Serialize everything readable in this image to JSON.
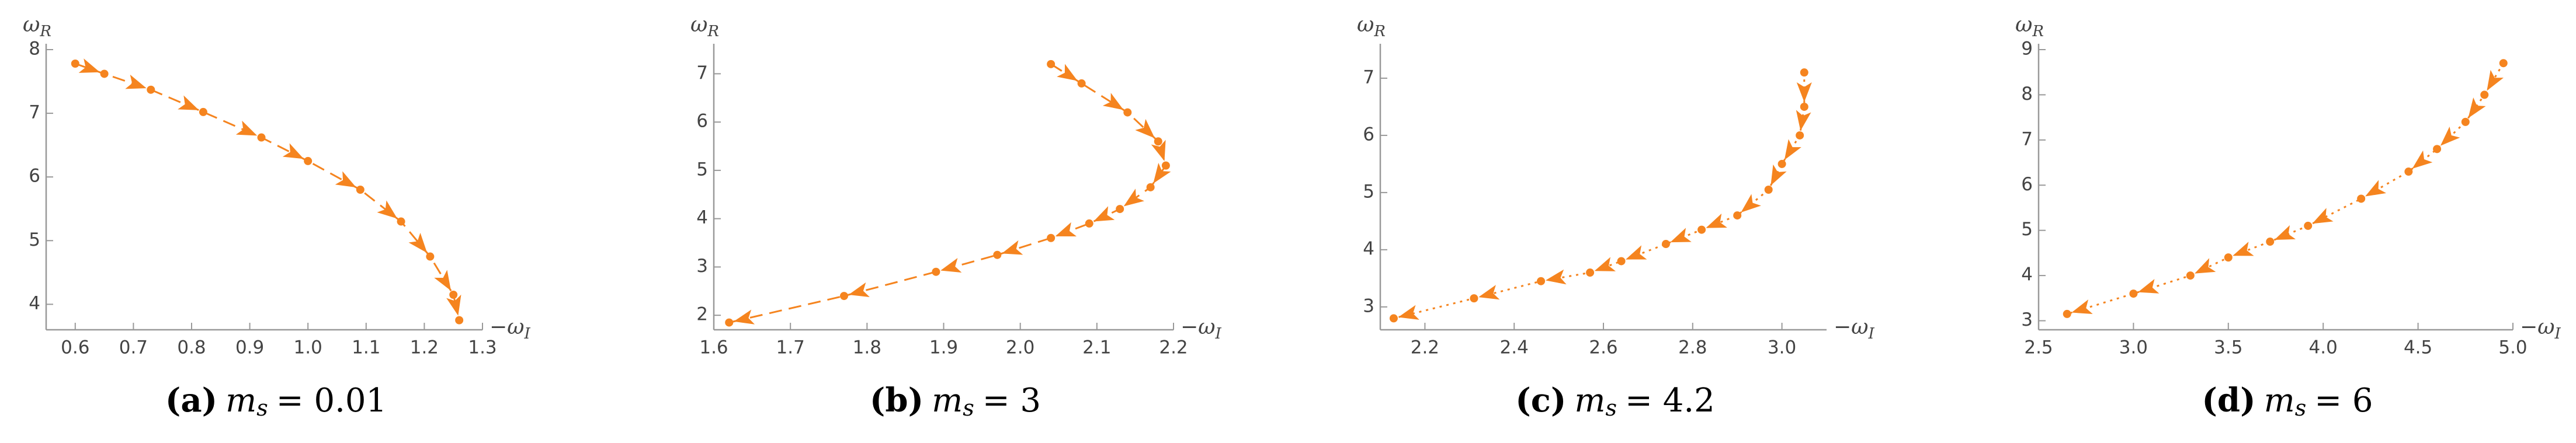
{
  "chart_data": [
    {
      "type": "line",
      "color": "#f5841f",
      "line_style": "dashed",
      "x": [
        0.6,
        0.65,
        0.73,
        0.82,
        0.92,
        1.0,
        1.09,
        1.16,
        1.21,
        1.25,
        1.26
      ],
      "values": [
        7.78,
        7.62,
        7.37,
        7.02,
        6.62,
        6.25,
        5.8,
        5.3,
        4.75,
        4.15,
        3.75
      ],
      "xlim": [
        0.55,
        1.3
      ],
      "ylim": [
        3.6,
        8
      ],
      "xticks": [
        0.6,
        0.7,
        0.8,
        0.9,
        {
          "value": 1,
          "label": "1.0"
        },
        1.1,
        1.2,
        1.3
      ],
      "yticks": [
        4,
        5,
        6,
        7,
        8
      ],
      "x_label": "−ω",
      "x_label_sub": "I",
      "y_label": "ω",
      "y_label_sub": "R",
      "caption_label": "(a)",
      "caption_symbol": "m",
      "caption_subscript": "s",
      "caption_value": "= 0.01"
    },
    {
      "type": "line",
      "color": "#f5841f",
      "line_style": "dashed",
      "x": [
        2.04,
        2.08,
        2.14,
        2.18,
        2.19,
        2.17,
        2.13,
        2.09,
        2.04,
        1.97,
        1.89,
        1.77,
        1.62
      ],
      "values": [
        7.2,
        6.8,
        6.2,
        5.6,
        5.1,
        4.65,
        4.2,
        3.9,
        3.6,
        3.25,
        2.9,
        2.4,
        1.85
      ],
      "xlim": [
        1.6,
        2.2
      ],
      "ylim": [
        1.7,
        7.5
      ],
      "xticks": [
        1.6,
        1.7,
        1.8,
        1.9,
        {
          "value": 2,
          "label": "2.0"
        },
        2.1,
        2.2
      ],
      "yticks": [
        2,
        3,
        4,
        5,
        6,
        7
      ],
      "x_label": "−ω",
      "x_label_sub": "I",
      "y_label": "ω",
      "y_label_sub": "R",
      "caption_label": "(b)",
      "caption_symbol": "m",
      "caption_subscript": "s",
      "caption_value": "= 3"
    },
    {
      "type": "line",
      "color": "#f5841f",
      "line_style": "dotted",
      "x": [
        3.05,
        3.05,
        3.04,
        3.0,
        2.97,
        2.9,
        2.82,
        2.74,
        2.64,
        2.57,
        2.46,
        2.31,
        2.13
      ],
      "values": [
        7.1,
        6.5,
        6.0,
        5.5,
        5.05,
        4.6,
        4.35,
        4.1,
        3.8,
        3.6,
        3.45,
        3.15,
        2.8
      ],
      "xlim": [
        2.1,
        3.1
      ],
      "ylim": [
        2.6,
        7.5
      ],
      "xticks": [
        2.2,
        2.4,
        2.6,
        2.8,
        {
          "value": 3,
          "label": "3.0"
        }
      ],
      "yticks": [
        3,
        4,
        5,
        6,
        7
      ],
      "x_label": "−ω",
      "x_label_sub": "I",
      "y_label": "ω",
      "y_label_sub": "R",
      "caption_label": "(c)",
      "caption_symbol": "m",
      "caption_subscript": "s",
      "caption_value": "= 4.2"
    },
    {
      "type": "line",
      "color": "#f5841f",
      "line_style": "dotted",
      "x": [
        4.95,
        4.85,
        4.75,
        4.6,
        4.45,
        4.2,
        3.92,
        3.72,
        3.5,
        3.3,
        3.0,
        2.65
      ],
      "values": [
        8.7,
        8.0,
        7.4,
        6.8,
        6.3,
        5.7,
        5.1,
        4.75,
        4.4,
        4.0,
        3.6,
        3.15
      ],
      "xlim": [
        2.5,
        5.0
      ],
      "ylim": [
        2.8,
        9
      ],
      "xticks": [
        2.5,
        {
          "value": 3,
          "label": "3.0"
        },
        3.5,
        {
          "value": 4,
          "label": "4.0"
        },
        4.5,
        {
          "value": 5,
          "label": "5.0"
        }
      ],
      "yticks": [
        3,
        4,
        5,
        6,
        7,
        8,
        9
      ],
      "x_label": "−ω",
      "x_label_sub": "I",
      "y_label": "ω",
      "y_label_sub": "R",
      "caption_label": "(d)",
      "caption_symbol": "m",
      "caption_subscript": "s",
      "caption_value": "= 6"
    }
  ]
}
